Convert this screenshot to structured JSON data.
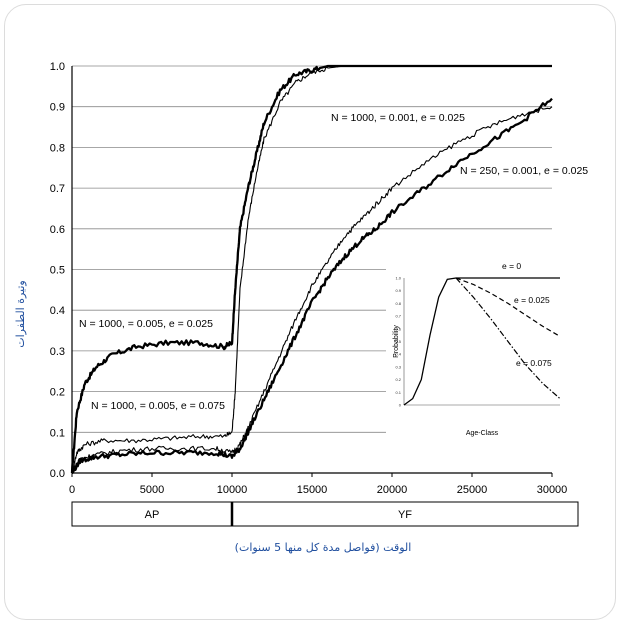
{
  "chart_data": [
    {
      "type": "line",
      "xlabel": "الوقت (فواصل مدة كل منها 5 سنوات)",
      "ylabel": "وتيرة الطفرات",
      "xlim": [
        0,
        30000
      ],
      "ylim": [
        0,
        1.0
      ],
      "x_ticks": [
        "0",
        "5000",
        "10000",
        "15000",
        "20000",
        "25000",
        "30000"
      ],
      "y_ticks": [
        "0.0",
        "0.1",
        "0.2",
        "0.3",
        "0.4",
        "0.5",
        "0.6",
        "0.7",
        "0.8",
        "0.9",
        "1.0"
      ],
      "grid": "horizontal",
      "phases": [
        {
          "label": "AP",
          "range": [
            0,
            10000
          ]
        },
        {
          "label": "YF",
          "range": [
            10000,
            30000
          ]
        }
      ],
      "annotations": [
        "N = 1000,    = 0.001, e = 0.025",
        "N = 250,    = 0.001, e = 0.025",
        "N = 1000,    = 0.005, e = 0.025",
        "N = 1000,    = 0.005, e = 0.075"
      ],
      "series": [
        {
          "x": [
            0,
            300,
            800,
            1500,
            2500,
            4000,
            6000,
            8000,
            9500,
            10000,
            10200,
            10500,
            11000,
            11500,
            12000,
            13000,
            14000,
            15000,
            16000,
            17000,
            18000,
            30000
          ],
          "y": [
            0.0,
            0.15,
            0.22,
            0.26,
            0.29,
            0.31,
            0.32,
            0.32,
            0.31,
            0.32,
            0.45,
            0.6,
            0.7,
            0.78,
            0.86,
            0.94,
            0.98,
            0.99,
            1.0,
            1.0,
            1.0,
            1.0
          ],
          "style": "thick"
        },
        {
          "x": [
            0,
            300,
            800,
            2000,
            4000,
            6000,
            8000,
            9500,
            10000,
            10200,
            10500,
            11000,
            11500,
            12000,
            13000,
            14000,
            15000,
            16000,
            17000,
            18000,
            30000
          ],
          "y": [
            0.0,
            0.05,
            0.07,
            0.08,
            0.08,
            0.085,
            0.09,
            0.09,
            0.1,
            0.2,
            0.45,
            0.62,
            0.73,
            0.82,
            0.91,
            0.96,
            0.985,
            0.995,
            1.0,
            1.0,
            1.0
          ],
          "style": "thin"
        },
        {
          "x": [
            0,
            500,
            1500,
            3000,
            5000,
            7000,
            9000,
            10000,
            10500,
            11000,
            12000,
            13000,
            14000,
            15000,
            16000,
            17000,
            18000,
            19000,
            20000,
            22000,
            24000,
            26000,
            28000,
            30000
          ],
          "y": [
            0.0,
            0.03,
            0.04,
            0.045,
            0.05,
            0.05,
            0.05,
            0.04,
            0.06,
            0.1,
            0.18,
            0.26,
            0.34,
            0.42,
            0.48,
            0.53,
            0.57,
            0.6,
            0.64,
            0.7,
            0.76,
            0.81,
            0.86,
            0.92
          ],
          "style": "thick"
        },
        {
          "x": [
            0,
            500,
            1500,
            3000,
            5000,
            7000,
            9000,
            10000,
            10500,
            11000,
            12000,
            13000,
            14000,
            15000,
            16000,
            17000,
            18000,
            19000,
            20000,
            22000,
            24000,
            26000,
            28000,
            30000
          ],
          "y": [
            0.0,
            0.035,
            0.045,
            0.055,
            0.06,
            0.06,
            0.06,
            0.05,
            0.07,
            0.11,
            0.2,
            0.29,
            0.38,
            0.46,
            0.52,
            0.58,
            0.62,
            0.66,
            0.7,
            0.76,
            0.81,
            0.85,
            0.88,
            0.9
          ],
          "style": "thin"
        }
      ]
    },
    {
      "type": "line",
      "xlabel": "Age-Class",
      "ylabel": "Probability",
      "ylim": [
        0,
        1.0
      ],
      "y_ticks": [
        "0",
        "0.1",
        "0.2",
        "0.3",
        "0.4",
        "0.5",
        "0.6",
        "0.7",
        "0.8",
        "0.9",
        "1.0"
      ],
      "annotations": [
        "e = 0",
        "e = 0.025",
        "e = 0.075"
      ],
      "series": [
        {
          "name": "e = 0",
          "x": [
            0,
            5,
            10,
            15,
            20,
            25,
            30,
            40,
            50,
            60,
            70,
            80,
            90
          ],
          "y": [
            0.0,
            0.05,
            0.2,
            0.55,
            0.85,
            0.99,
            1.0,
            1.0,
            1.0,
            1.0,
            1.0,
            1.0,
            1.0
          ],
          "style": "solid"
        },
        {
          "name": "e = 0.025",
          "x": [
            30,
            40,
            50,
            60,
            70,
            80,
            90
          ],
          "y": [
            1.0,
            0.95,
            0.88,
            0.8,
            0.71,
            0.62,
            0.54
          ],
          "style": "dashed"
        },
        {
          "name": "e = 0.075",
          "x": [
            30,
            40,
            50,
            60,
            70,
            80,
            90
          ],
          "y": [
            1.0,
            0.85,
            0.68,
            0.5,
            0.32,
            0.17,
            0.05
          ],
          "style": "dashdot"
        }
      ]
    }
  ]
}
